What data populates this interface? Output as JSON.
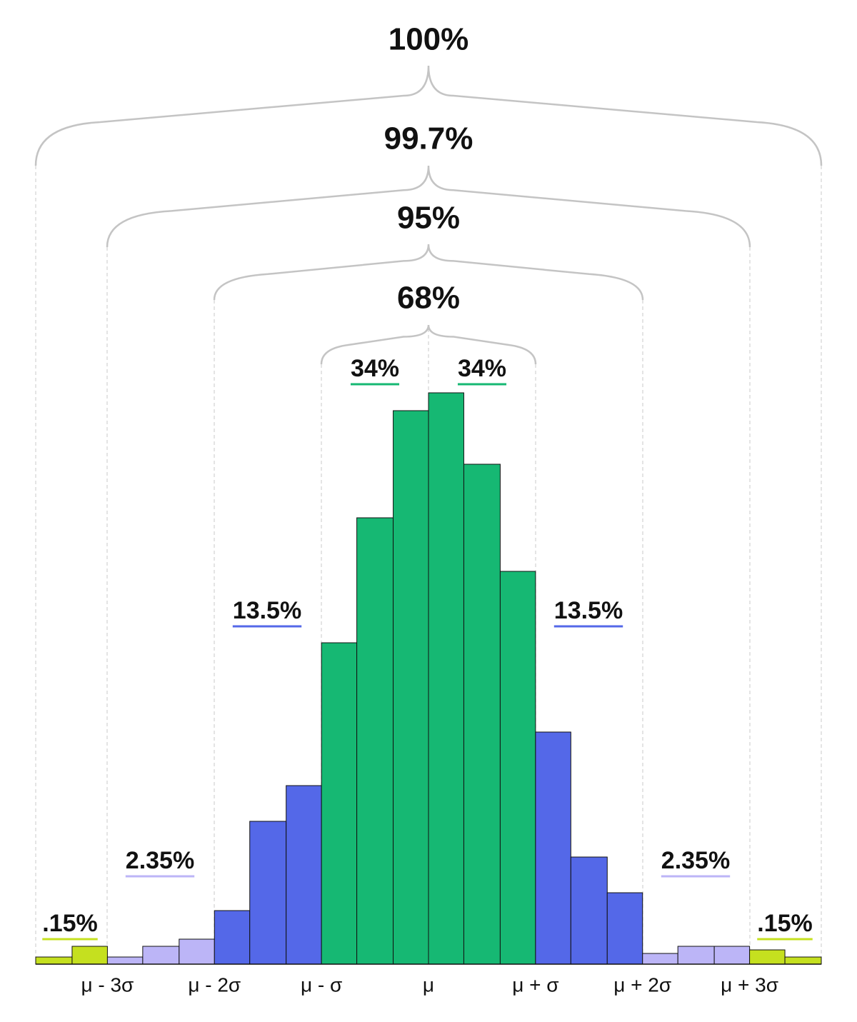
{
  "chart_data": {
    "type": "histogram",
    "bins": [
      -3.67,
      -3.33,
      -3,
      -2.67,
      -2.33,
      -2,
      -1.67,
      -1.33,
      -1,
      -0.67,
      -0.33,
      0,
      0.33,
      0.67,
      1,
      1.33,
      1.67,
      2,
      2.33,
      2.67,
      3,
      3.33,
      3.67
    ],
    "values": [
      10,
      25,
      10,
      25,
      35,
      75,
      200,
      250,
      450,
      625,
      775,
      800,
      700,
      550,
      325,
      150,
      100,
      15,
      25,
      25,
      20,
      10
    ],
    "colors": [
      "#c5e01f",
      "#c5e01f",
      "#bcb5f7",
      "#bcb5f7",
      "#bcb5f7",
      "#5468e8",
      "#5468e8",
      "#5468e8",
      "#16b873",
      "#16b873",
      "#16b873",
      "#16b873",
      "#16b873",
      "#16b873",
      "#5468e8",
      "#5468e8",
      "#5468e8",
      "#bcb5f7",
      "#bcb5f7",
      "#bcb5f7",
      "#c5e01f",
      "#c5e01f"
    ],
    "xlim": [
      -3.67,
      3.67
    ],
    "ylim": [
      0,
      800
    ],
    "xticks": [
      {
        "value": -3,
        "label": "μ - 3σ"
      },
      {
        "value": -2,
        "label": "μ - 2σ"
      },
      {
        "value": -1,
        "label": "μ - σ"
      },
      {
        "value": 0,
        "label": "μ"
      },
      {
        "value": 1,
        "label": "μ + σ"
      },
      {
        "value": 2,
        "label": "μ + 2σ"
      },
      {
        "value": 3,
        "label": "μ + 3σ"
      }
    ],
    "brackets": [
      "100%",
      "99.7%",
      "95%",
      "68%"
    ],
    "region_labels": [
      {
        "label": ".15%",
        "color": "#c5e01f"
      },
      {
        "label": "2.35%",
        "color": "#bcb5f7"
      },
      {
        "label": "13.5%",
        "color": "#5468e8"
      },
      {
        "label": "34%",
        "color": "#16b873"
      },
      {
        "label": "34%",
        "color": "#16b873"
      },
      {
        "label": "13.5%",
        "color": "#5468e8"
      },
      {
        "label": "2.35%",
        "color": "#bcb5f7"
      },
      {
        "label": ".15%",
        "color": "#c5e01f"
      }
    ]
  }
}
